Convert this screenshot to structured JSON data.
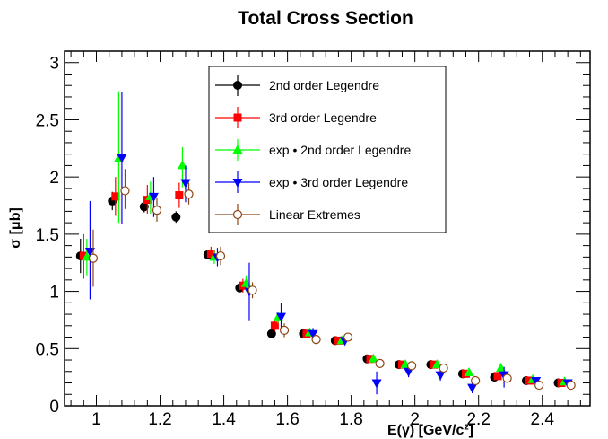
{
  "chart_data": {
    "type": "scatter",
    "title": "Total Cross Section",
    "xlabel": "E(γ) [GeV/c²]",
    "ylabel": "σ [μb]",
    "xlim": [
      0.9,
      2.55
    ],
    "ylim": [
      0,
      3.1
    ],
    "xticks": [
      1,
      1.2,
      1.4,
      1.6,
      1.8,
      2,
      2.2,
      2.4
    ],
    "xtick_labels": [
      "1",
      "1.2",
      "1.4",
      "1.6",
      "1.8",
      "2",
      "2.2",
      "2.4"
    ],
    "yticks": [
      0,
      0.5,
      1,
      1.5,
      2,
      2.5,
      3
    ],
    "ytick_labels": [
      "0",
      "0.5",
      "1",
      "1.5",
      "2",
      "2.5",
      "3"
    ],
    "grid": false,
    "legend_position": "top-center",
    "series": [
      {
        "name": "2nd order Legendre",
        "color": "#000000",
        "marker": "filled-circle",
        "points": [
          {
            "x": 0.95,
            "y": 1.31,
            "lo": 1.16,
            "hi": 1.46
          },
          {
            "x": 1.05,
            "y": 1.79,
            "lo": 1.71,
            "hi": 1.87
          },
          {
            "x": 1.15,
            "y": 1.74,
            "lo": 1.69,
            "hi": 1.79
          },
          {
            "x": 1.25,
            "y": 1.65,
            "lo": 1.6,
            "hi": 1.7
          },
          {
            "x": 1.35,
            "y": 1.32,
            "lo": 1.29,
            "hi": 1.35
          },
          {
            "x": 1.45,
            "y": 1.03,
            "lo": 1.0,
            "hi": 1.06
          },
          {
            "x": 1.55,
            "y": 0.63,
            "lo": 0.63,
            "hi": 0.63
          },
          {
            "x": 1.65,
            "y": 0.63,
            "lo": 0.61,
            "hi": 0.65
          },
          {
            "x": 1.75,
            "y": 0.57,
            "lo": 0.56,
            "hi": 0.58
          },
          {
            "x": 1.85,
            "y": 0.41,
            "lo": 0.4,
            "hi": 0.42
          },
          {
            "x": 1.95,
            "y": 0.36,
            "lo": 0.35,
            "hi": 0.37
          },
          {
            "x": 2.05,
            "y": 0.36,
            "lo": 0.35,
            "hi": 0.37
          },
          {
            "x": 2.15,
            "y": 0.28,
            "lo": 0.27,
            "hi": 0.29
          },
          {
            "x": 2.25,
            "y": 0.25,
            "lo": 0.24,
            "hi": 0.26
          },
          {
            "x": 2.35,
            "y": 0.22,
            "lo": 0.21,
            "hi": 0.23
          },
          {
            "x": 2.45,
            "y": 0.2,
            "lo": 0.19,
            "hi": 0.21
          }
        ]
      },
      {
        "name": "3rd order Legendre",
        "color": "#ff0000",
        "marker": "filled-square",
        "points": [
          {
            "x": 0.96,
            "y": 1.31,
            "lo": 1.11,
            "hi": 1.5
          },
          {
            "x": 1.06,
            "y": 1.83,
            "lo": 1.66,
            "hi": 2.0
          },
          {
            "x": 1.16,
            "y": 1.8,
            "lo": 1.68,
            "hi": 1.93
          },
          {
            "x": 1.26,
            "y": 1.84,
            "lo": 1.73,
            "hi": 1.95
          },
          {
            "x": 1.36,
            "y": 1.33,
            "lo": 1.27,
            "hi": 1.39
          },
          {
            "x": 1.46,
            "y": 1.05,
            "lo": 0.99,
            "hi": 1.11
          },
          {
            "x": 1.56,
            "y": 0.7,
            "lo": 0.65,
            "hi": 0.75
          },
          {
            "x": 1.66,
            "y": 0.63,
            "lo": 0.6,
            "hi": 0.66
          },
          {
            "x": 1.76,
            "y": 0.57,
            "lo": 0.55,
            "hi": 0.59
          },
          {
            "x": 1.86,
            "y": 0.41,
            "lo": 0.39,
            "hi": 0.43
          },
          {
            "x": 1.96,
            "y": 0.36,
            "lo": 0.34,
            "hi": 0.38
          },
          {
            "x": 2.06,
            "y": 0.36,
            "lo": 0.34,
            "hi": 0.38
          },
          {
            "x": 2.16,
            "y": 0.28,
            "lo": 0.26,
            "hi": 0.3
          },
          {
            "x": 2.26,
            "y": 0.26,
            "lo": 0.24,
            "hi": 0.28
          },
          {
            "x": 2.36,
            "y": 0.22,
            "lo": 0.21,
            "hi": 0.23
          },
          {
            "x": 2.46,
            "y": 0.2,
            "lo": 0.19,
            "hi": 0.21
          }
        ]
      },
      {
        "name": "exp • 2nd order Legendre",
        "color": "#00ff00",
        "marker": "filled-triangle-up",
        "points": [
          {
            "x": 0.97,
            "y": 1.3,
            "lo": 1.14,
            "hi": 1.46
          },
          {
            "x": 1.07,
            "y": 2.16,
            "lo": 1.6,
            "hi": 2.75
          },
          {
            "x": 1.17,
            "y": 1.83,
            "lo": 1.68,
            "hi": 1.96
          },
          {
            "x": 1.27,
            "y": 2.1,
            "lo": 1.91,
            "hi": 2.26
          },
          {
            "x": 1.37,
            "y": 1.3,
            "lo": 1.24,
            "hi": 1.36
          },
          {
            "x": 1.47,
            "y": 1.07,
            "lo": 1.0,
            "hi": 1.14
          },
          {
            "x": 1.57,
            "y": 0.77,
            "lo": 0.72,
            "hi": 0.82
          },
          {
            "x": 1.67,
            "y": 0.64,
            "lo": 0.61,
            "hi": 0.67
          },
          {
            "x": 1.77,
            "y": 0.57,
            "lo": 0.55,
            "hi": 0.59
          },
          {
            "x": 1.87,
            "y": 0.41,
            "lo": 0.39,
            "hi": 0.43
          },
          {
            "x": 1.97,
            "y": 0.36,
            "lo": 0.34,
            "hi": 0.38
          },
          {
            "x": 2.07,
            "y": 0.36,
            "lo": 0.34,
            "hi": 0.38
          },
          {
            "x": 2.17,
            "y": 0.29,
            "lo": 0.27,
            "hi": 0.31
          },
          {
            "x": 2.27,
            "y": 0.33,
            "lo": 0.3,
            "hi": 0.36
          },
          {
            "x": 2.37,
            "y": 0.23,
            "lo": 0.22,
            "hi": 0.24
          },
          {
            "x": 2.47,
            "y": 0.21,
            "lo": 0.2,
            "hi": 0.22
          }
        ]
      },
      {
        "name": "exp • 3rd order Legendre",
        "color": "#0000ff",
        "marker": "filled-triangle-down",
        "points": [
          {
            "x": 0.98,
            "y": 1.35,
            "lo": 0.93,
            "hi": 1.79
          },
          {
            "x": 1.08,
            "y": 2.17,
            "lo": 1.59,
            "hi": 2.74
          },
          {
            "x": 1.18,
            "y": 1.83,
            "lo": 1.65,
            "hi": 2.0
          },
          {
            "x": 1.28,
            "y": 1.95,
            "lo": 1.78,
            "hi": 2.1
          },
          {
            "x": 1.38,
            "y": 1.3,
            "lo": 1.22,
            "hi": 1.38
          },
          {
            "x": 1.48,
            "y": 1.0,
            "lo": 0.74,
            "hi": 1.25
          },
          {
            "x": 1.58,
            "y": 0.78,
            "lo": 0.65,
            "hi": 0.9
          },
          {
            "x": 1.68,
            "y": 0.63,
            "lo": 0.58,
            "hi": 0.68
          },
          {
            "x": 1.78,
            "y": 0.57,
            "lo": 0.54,
            "hi": 0.6
          },
          {
            "x": 1.88,
            "y": 0.2,
            "lo": 0.1,
            "hi": 0.3
          },
          {
            "x": 1.98,
            "y": 0.3,
            "lo": 0.25,
            "hi": 0.35
          },
          {
            "x": 2.08,
            "y": 0.27,
            "lo": 0.22,
            "hi": 0.32
          },
          {
            "x": 2.18,
            "y": 0.16,
            "lo": 0.11,
            "hi": 0.22
          },
          {
            "x": 2.28,
            "y": 0.27,
            "lo": 0.16,
            "hi": 0.34
          },
          {
            "x": 2.38,
            "y": 0.22,
            "lo": 0.2,
            "hi": 0.24
          },
          {
            "x": 2.48,
            "y": 0.2,
            "lo": 0.18,
            "hi": 0.22
          }
        ]
      },
      {
        "name": "Linear Extremes",
        "color": "#8b4513",
        "marker": "open-circle",
        "points": [
          {
            "x": 0.99,
            "y": 1.29,
            "lo": 1.04,
            "hi": 1.54
          },
          {
            "x": 1.09,
            "y": 1.88,
            "lo": 1.72,
            "hi": 2.07
          },
          {
            "x": 1.19,
            "y": 1.71,
            "lo": 1.61,
            "hi": 1.82
          },
          {
            "x": 1.29,
            "y": 1.85,
            "lo": 1.76,
            "hi": 1.95
          },
          {
            "x": 1.39,
            "y": 1.31,
            "lo": 1.23,
            "hi": 1.39
          },
          {
            "x": 1.49,
            "y": 1.01,
            "lo": 0.94,
            "hi": 1.08
          },
          {
            "x": 1.59,
            "y": 0.66,
            "lo": 0.6,
            "hi": 0.72
          },
          {
            "x": 1.69,
            "y": 0.58,
            "lo": 0.54,
            "hi": 0.62
          },
          {
            "x": 1.79,
            "y": 0.6,
            "lo": 0.57,
            "hi": 0.63
          },
          {
            "x": 1.89,
            "y": 0.37,
            "lo": 0.35,
            "hi": 0.39
          },
          {
            "x": 1.99,
            "y": 0.35,
            "lo": 0.33,
            "hi": 0.37
          },
          {
            "x": 2.09,
            "y": 0.33,
            "lo": 0.31,
            "hi": 0.35
          },
          {
            "x": 2.19,
            "y": 0.22,
            "lo": 0.2,
            "hi": 0.24
          },
          {
            "x": 2.29,
            "y": 0.24,
            "lo": 0.21,
            "hi": 0.27
          },
          {
            "x": 2.39,
            "y": 0.18,
            "lo": 0.17,
            "hi": 0.19
          },
          {
            "x": 2.49,
            "y": 0.18,
            "lo": 0.17,
            "hi": 0.19
          }
        ]
      }
    ]
  }
}
